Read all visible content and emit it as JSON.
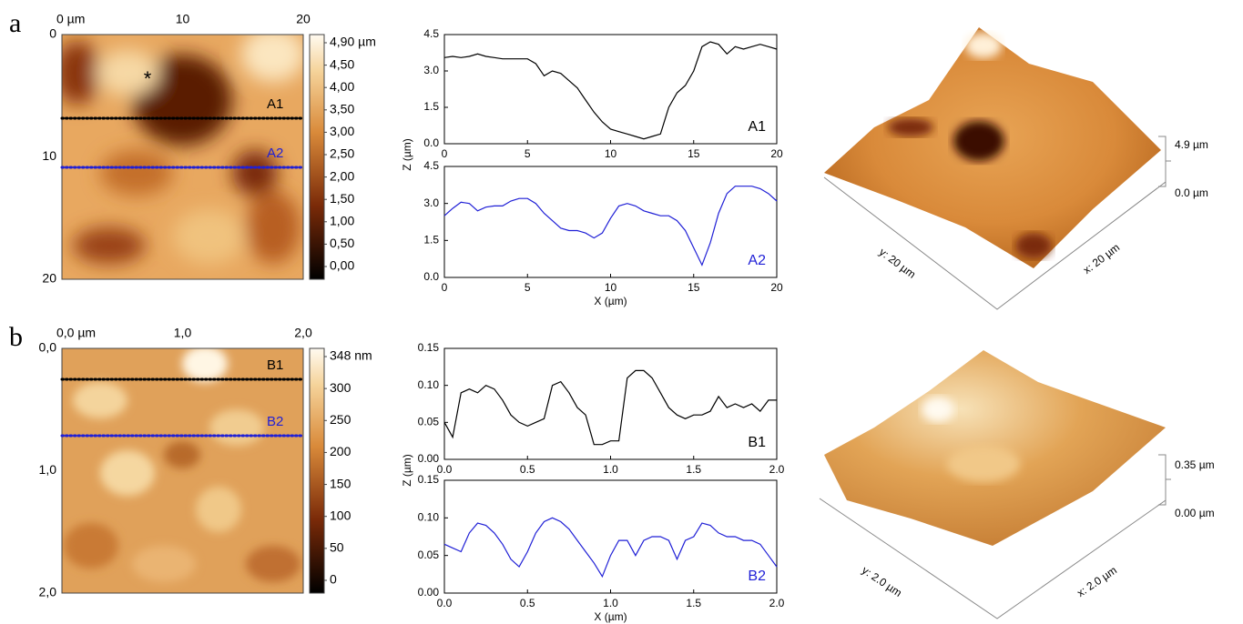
{
  "chart_data": [
    {
      "type": "line",
      "x": [
        0,
        0.5,
        1,
        1.5,
        2,
        2.5,
        3,
        3.5,
        4,
        4.5,
        5,
        5.5,
        6,
        6.5,
        7,
        7.5,
        8,
        8.5,
        9,
        9.5,
        10,
        10.5,
        11,
        11.5,
        12,
        12.5,
        13,
        13.5,
        14,
        14.5,
        15,
        15.5,
        16,
        16.5,
        17,
        17.5,
        18,
        18.5,
        19,
        19.5,
        20
      ],
      "series": [
        {
          "name": "A1",
          "color": "#000000",
          "values": [
            3.55,
            3.6,
            3.55,
            3.6,
            3.7,
            3.6,
            3.55,
            3.5,
            3.5,
            3.5,
            3.5,
            3.3,
            2.8,
            3.0,
            2.9,
            2.6,
            2.3,
            1.8,
            1.3,
            0.9,
            0.6,
            0.5,
            0.4,
            0.3,
            0.2,
            0.3,
            0.4,
            1.5,
            2.1,
            2.4,
            3.0,
            4.0,
            4.2,
            4.1,
            3.7,
            4.0,
            3.9,
            4.0,
            4.1,
            4.0,
            3.9
          ]
        }
      ],
      "xlim": [
        0,
        20
      ],
      "ylim": [
        0,
        4.5
      ],
      "xticks": [
        0,
        5,
        10,
        15,
        20
      ],
      "yticks": [
        {
          "value": 0,
          "label": "0.0"
        },
        {
          "value": 1.5,
          "label": "1.5"
        },
        {
          "value": 3,
          "label": "3.0"
        },
        {
          "value": 4.5,
          "label": "4.5"
        }
      ],
      "ylabel": "Z (µm)"
    },
    {
      "type": "line",
      "x": [
        0,
        0.5,
        1,
        1.5,
        2,
        2.5,
        3,
        3.5,
        4,
        4.5,
        5,
        5.5,
        6,
        6.5,
        7,
        7.5,
        8,
        8.5,
        9,
        9.5,
        10,
        10.5,
        11,
        11.5,
        12,
        12.5,
        13,
        13.5,
        14,
        14.5,
        15,
        15.5,
        16,
        16.5,
        17,
        17.5,
        18,
        18.5,
        19,
        19.5,
        20
      ],
      "series": [
        {
          "name": "A2",
          "color": "#1f1fd6",
          "values": [
            2.5,
            2.8,
            3.05,
            3.0,
            2.7,
            2.85,
            2.9,
            2.9,
            3.1,
            3.2,
            3.2,
            3.0,
            2.6,
            2.3,
            2.0,
            1.9,
            1.9,
            1.8,
            1.6,
            1.8,
            2.4,
            2.9,
            3.0,
            2.9,
            2.7,
            2.6,
            2.5,
            2.5,
            2.3,
            1.9,
            1.2,
            0.5,
            1.4,
            2.6,
            3.4,
            3.7,
            3.7,
            3.7,
            3.6,
            3.4,
            3.1
          ]
        }
      ],
      "xlim": [
        0,
        20
      ],
      "ylim": [
        0,
        4.5
      ],
      "xticks": [
        0,
        5,
        10,
        15,
        20
      ],
      "yticks": [
        {
          "value": 0,
          "label": "0.0"
        },
        {
          "value": 1.5,
          "label": "1.5"
        },
        {
          "value": 3,
          "label": "3.0"
        },
        {
          "value": 4.5,
          "label": "4.5"
        }
      ],
      "xlabel": "X (µm)"
    },
    {
      "type": "line",
      "x": [
        0,
        0.05,
        0.1,
        0.15,
        0.2,
        0.25,
        0.3,
        0.35,
        0.4,
        0.45,
        0.5,
        0.55,
        0.6,
        0.65,
        0.7,
        0.75,
        0.8,
        0.85,
        0.9,
        0.95,
        1,
        1.05,
        1.1,
        1.15,
        1.2,
        1.25,
        1.3,
        1.35,
        1.4,
        1.45,
        1.5,
        1.55,
        1.6,
        1.65,
        1.7,
        1.75,
        1.8,
        1.85,
        1.9,
        1.95,
        2
      ],
      "series": [
        {
          "name": "B1",
          "color": "#000000",
          "values": [
            0.05,
            0.03,
            0.09,
            0.095,
            0.09,
            0.1,
            0.095,
            0.08,
            0.06,
            0.05,
            0.045,
            0.05,
            0.055,
            0.1,
            0.105,
            0.09,
            0.07,
            0.06,
            0.02,
            0.02,
            0.025,
            0.025,
            0.11,
            0.12,
            0.12,
            0.11,
            0.09,
            0.07,
            0.06,
            0.055,
            0.06,
            0.06,
            0.065,
            0.085,
            0.07,
            0.075,
            0.07,
            0.075,
            0.065,
            0.08,
            0.08
          ]
        }
      ],
      "xlim": [
        0,
        2
      ],
      "ylim": [
        0,
        0.15
      ],
      "xticks": [
        {
          "value": 0,
          "label": "0.0"
        },
        {
          "value": 0.5,
          "label": "0.5"
        },
        {
          "value": 1,
          "label": "1.0"
        },
        {
          "value": 1.5,
          "label": "1.5"
        },
        {
          "value": 2,
          "label": "2.0"
        }
      ],
      "yticks": [
        {
          "value": 0,
          "label": "0.00"
        },
        {
          "value": 0.05,
          "label": "0.05"
        },
        {
          "value": 0.1,
          "label": "0.10"
        },
        {
          "value": 0.15,
          "label": "0.15"
        }
      ],
      "ylabel": "Z (µm)"
    },
    {
      "type": "line",
      "x": [
        0,
        0.05,
        0.1,
        0.15,
        0.2,
        0.25,
        0.3,
        0.35,
        0.4,
        0.45,
        0.5,
        0.55,
        0.6,
        0.65,
        0.7,
        0.75,
        0.8,
        0.85,
        0.9,
        0.95,
        1,
        1.05,
        1.1,
        1.15,
        1.2,
        1.25,
        1.3,
        1.35,
        1.4,
        1.45,
        1.5,
        1.55,
        1.6,
        1.65,
        1.7,
        1.75,
        1.8,
        1.85,
        1.9,
        1.95,
        2
      ],
      "series": [
        {
          "name": "B2",
          "color": "#1f1fd6",
          "values": [
            0.065,
            0.06,
            0.055,
            0.08,
            0.093,
            0.09,
            0.08,
            0.065,
            0.045,
            0.035,
            0.055,
            0.08,
            0.095,
            0.1,
            0.095,
            0.085,
            0.07,
            0.055,
            0.04,
            0.022,
            0.05,
            0.07,
            0.07,
            0.05,
            0.07,
            0.075,
            0.075,
            0.07,
            0.045,
            0.07,
            0.075,
            0.093,
            0.09,
            0.08,
            0.075,
            0.075,
            0.07,
            0.07,
            0.065,
            0.05,
            0.035
          ]
        }
      ],
      "xlim": [
        0,
        2
      ],
      "ylim": [
        0,
        0.15
      ],
      "xticks": [
        {
          "value": 0,
          "label": "0.0"
        },
        {
          "value": 0.5,
          "label": "0.5"
        },
        {
          "value": 1,
          "label": "1.0"
        },
        {
          "value": 1.5,
          "label": "1.5"
        },
        {
          "value": 2,
          "label": "2.0"
        }
      ],
      "yticks": [
        {
          "value": 0,
          "label": "0.00"
        },
        {
          "value": 0.05,
          "label": "0.05"
        },
        {
          "value": 0.1,
          "label": "0.10"
        },
        {
          "value": 0.15,
          "label": "0.15"
        }
      ],
      "xlabel": "X (µm)"
    }
  ],
  "figure": {
    "panels": [
      {
        "label": "a",
        "map": {
          "top_ticks": [
            "0 µm",
            "10",
            "20"
          ],
          "left_ticks": [
            "0",
            "10",
            "20"
          ],
          "colorbar_ticks": [
            "4,90 µm",
            "4,50",
            "4,00",
            "3,50",
            "3,00",
            "2,50",
            "2,00",
            "1,50",
            "1,00",
            "0,50",
            "0,00"
          ],
          "lines": [
            {
              "label": "A1",
              "color": "#000000"
            },
            {
              "label": "A2",
              "color": "#1f1fd6"
            }
          ],
          "marker": "*"
        },
        "render": {
          "z_top": "4.9 µm",
          "z_bottom": "0.0 µm",
          "y_axis": "y: 20 µm",
          "x_axis": "x: 20 µm"
        }
      },
      {
        "label": "b",
        "map": {
          "top_ticks": [
            "0,0 µm",
            "1,0",
            "2,0"
          ],
          "left_ticks": [
            "0,0",
            "1,0",
            "2,0"
          ],
          "colorbar_ticks": [
            "348 nm",
            "300",
            "250",
            "200",
            "150",
            "100",
            "50",
            "0"
          ],
          "lines": [
            {
              "label": "B1",
              "color": "#000000"
            },
            {
              "label": "B2",
              "color": "#1f1fd6"
            }
          ]
        },
        "render": {
          "z_top": "0.35 µm",
          "z_bottom": "0.00 µm",
          "y_axis": "y: 2.0 µm",
          "x_axis": "x: 2.0 µm"
        }
      }
    ]
  }
}
